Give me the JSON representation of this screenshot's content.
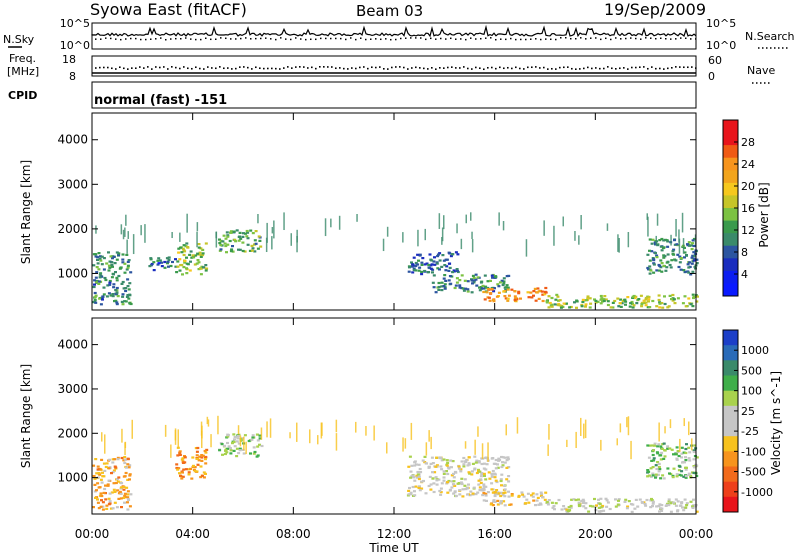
{
  "header": {
    "station": "Syowa East (fitACF)",
    "beam": "Beam 03",
    "date": "19/Sep/2009"
  },
  "meta_panels": {
    "nsky_label": "N.Sky",
    "nsky_ticks": [
      "10^5",
      "10^0"
    ],
    "nsearch_label": "N.Search",
    "nsearch_ticks": [
      "10^5",
      "10^0"
    ],
    "freq_label_line1": "Freq.",
    "freq_label_line2": "[MHz]",
    "freq_ticks": [
      "18",
      "8"
    ],
    "nave_label": "Nave",
    "nave_ticks": [
      "60",
      "0"
    ],
    "cpid_label": "CPID",
    "cpid_value": "normal (fast) -151"
  },
  "power_scale": {
    "label": "Power [dB]",
    "ticks": [
      "28",
      "24",
      "20",
      "16",
      "12",
      "8",
      "4"
    ],
    "colors": [
      "#e8141b",
      "#e8141b",
      "#f05a14",
      "#f7941d",
      "#f2a51d",
      "#f6c81e",
      "#c6c528",
      "#7cc242",
      "#3a9a4c",
      "#3a8a6a",
      "#2c55a0",
      "#1a2dbe",
      "#0c1ef0",
      "#0a1aff"
    ]
  },
  "velocity_scale": {
    "label": "Velocity [m s^-1]",
    "ticks": [
      "1000",
      "500",
      "100",
      "25",
      "-25",
      "-100",
      "-500",
      "-1000"
    ],
    "colors": [
      "#1c3fc8",
      "#2a6bb8",
      "#3a8a6a",
      "#3fae4a",
      "#a9d24d",
      "#c6c6c6",
      "#c6c6c6",
      "#f7c21e",
      "#f7941d",
      "#f26a1b",
      "#ee3f1a",
      "#e8141b"
    ]
  },
  "chart_data": [
    {
      "type": "heatmap",
      "title": "Power",
      "ylabel": "Slant Range [km]",
      "xlabel": "Time UT",
      "x_ticks": [
        "00:00",
        "04:00",
        "08:00",
        "12:00",
        "16:00",
        "20:00",
        "00:00"
      ],
      "y_ticks": [
        1000,
        2000,
        3000,
        4000
      ],
      "ylim": [
        180,
        4600
      ],
      "xlim": [
        0,
        24
      ],
      "colorbar": "Power [dB]",
      "clim": [
        0,
        30
      ],
      "regions": [
        {
          "t": [
            0.0,
            1.5
          ],
          "r": [
            300,
            1500
          ],
          "v": 10
        },
        {
          "t": [
            2.2,
            3.3
          ],
          "r": [
            1100,
            1400
          ],
          "v": 8
        },
        {
          "t": [
            3.3,
            4.5
          ],
          "r": [
            1000,
            1700
          ],
          "v": 14
        },
        {
          "t": [
            5.0,
            6.7
          ],
          "r": [
            1500,
            2000
          ],
          "v": 12
        },
        {
          "t": [
            12.5,
            14.5
          ],
          "r": [
            1000,
            1500
          ],
          "v": 8
        },
        {
          "t": [
            13.5,
            16.5
          ],
          "r": [
            600,
            1000
          ],
          "v": 10
        },
        {
          "t": [
            15.5,
            18.0
          ],
          "r": [
            400,
            700
          ],
          "v": 22
        },
        {
          "t": [
            18.0,
            24.0
          ],
          "r": [
            250,
            550
          ],
          "v": 14
        },
        {
          "t": [
            22.0,
            24.0
          ],
          "r": [
            1000,
            1800
          ],
          "v": 10
        }
      ]
    },
    {
      "type": "heatmap",
      "title": "Velocity",
      "ylabel": "Slant Range [km]",
      "xlabel": "Time UT",
      "x_ticks": [
        "00:00",
        "04:00",
        "08:00",
        "12:00",
        "16:00",
        "20:00",
        "00:00"
      ],
      "y_ticks": [
        1000,
        2000,
        3000,
        4000
      ],
      "ylim": [
        180,
        4600
      ],
      "xlim": [
        0,
        24
      ],
      "colorbar": "Velocity [m s^-1]",
      "clim": [
        -1000,
        1000
      ],
      "regions": [
        {
          "t": [
            0.0,
            1.5
          ],
          "r": [
            300,
            1500
          ],
          "v": -300
        },
        {
          "t": [
            3.3,
            4.5
          ],
          "r": [
            1000,
            1700
          ],
          "v": -400
        },
        {
          "t": [
            5.0,
            6.7
          ],
          "r": [
            1500,
            2000
          ],
          "v": 200
        },
        {
          "t": [
            12.5,
            16.5
          ],
          "r": [
            600,
            1500
          ],
          "v": 0
        },
        {
          "t": [
            15.5,
            18.0
          ],
          "r": [
            400,
            700
          ],
          "v": -200
        },
        {
          "t": [
            18.0,
            24.0
          ],
          "r": [
            250,
            550
          ],
          "v": 50
        },
        {
          "t": [
            22.0,
            24.0
          ],
          "r": [
            1000,
            1800
          ],
          "v": 300
        }
      ]
    }
  ]
}
